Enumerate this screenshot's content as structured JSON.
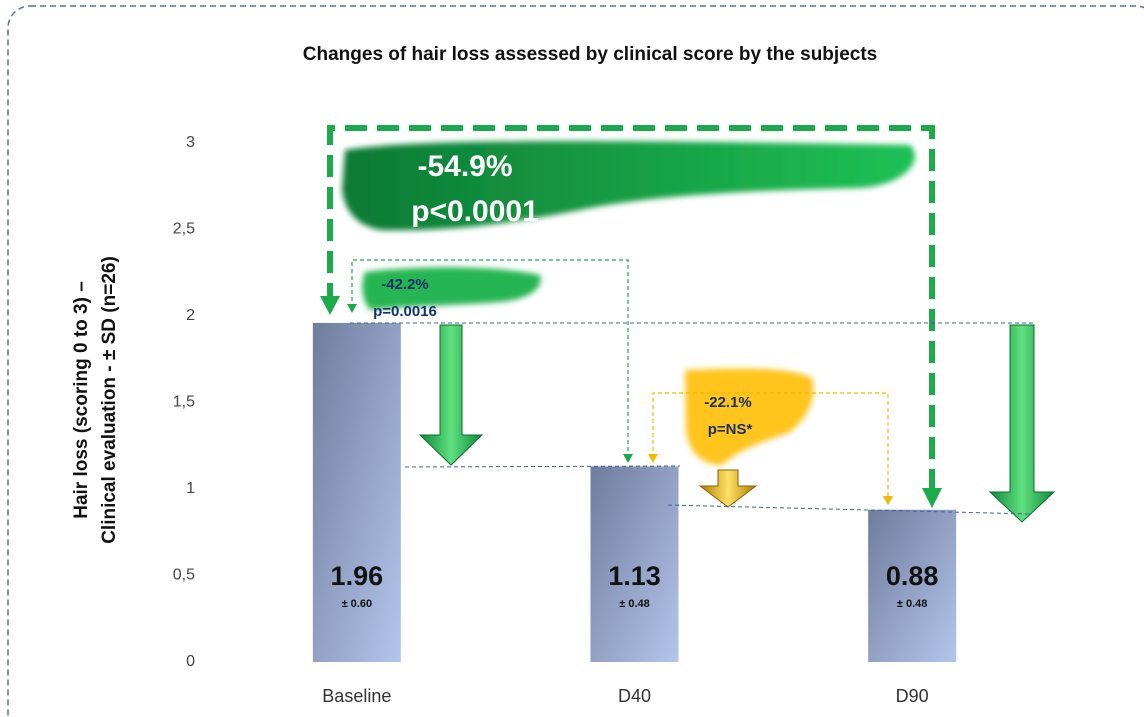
{
  "chart_data": {
    "type": "bar",
    "title": "Changes of hair loss assessed by clinical score by the subjects",
    "y_label": [
      "Hair loss (scoring 0 to 3) –",
      "Clinical evaluation - ± SD (n=26)"
    ],
    "categories": [
      "Baseline",
      "D40",
      "D90"
    ],
    "values": [
      1.96,
      1.13,
      0.88
    ],
    "sd_labels": [
      "± 0.60",
      "± 0.48",
      "± 0.48"
    ],
    "ylim": [
      0,
      3
    ],
    "yticks": [
      0,
      {
        "value": 0.5,
        "label": "0,5"
      },
      1,
      {
        "value": 1.5,
        "label": "1,5"
      },
      2,
      {
        "value": 2.5,
        "label": "2,5"
      },
      3
    ],
    "annotations": {
      "overall": [
        "-54.9%",
        "p<0.0001"
      ],
      "baseline_d40": [
        "-42.2%",
        "p=0.0016"
      ],
      "d40_d90": [
        "-22.1%",
        "p=NS*"
      ]
    }
  }
}
